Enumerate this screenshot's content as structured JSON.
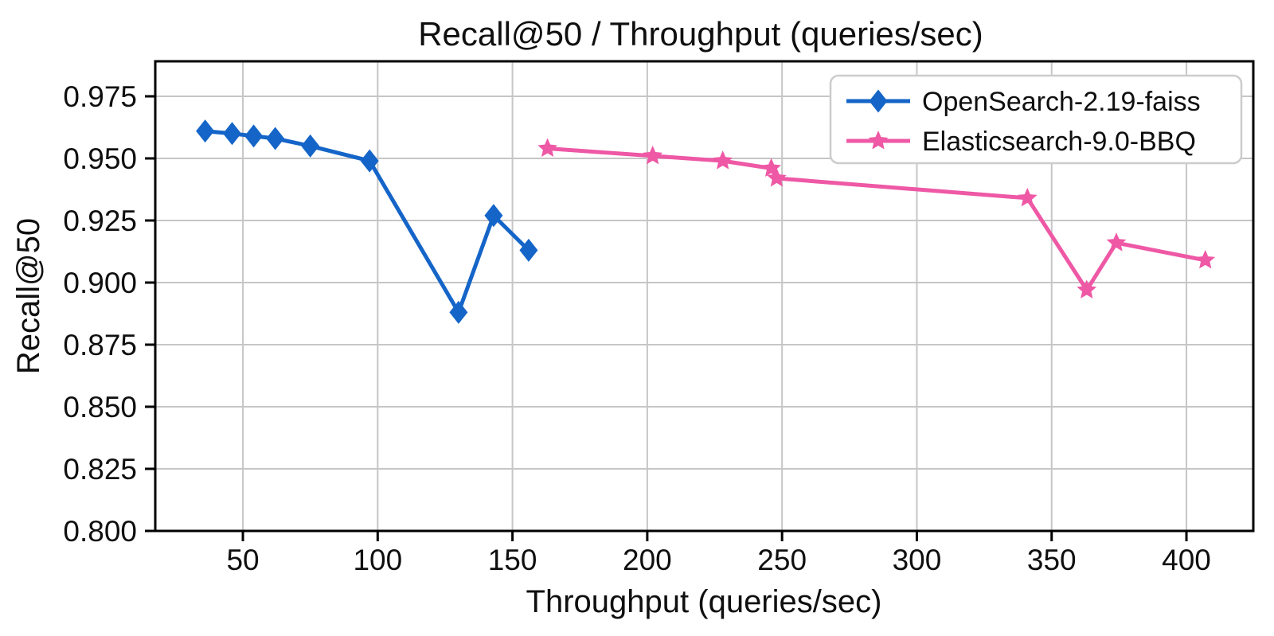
{
  "chart_data": {
    "type": "line",
    "title": "Recall@50 / Throughput (queries/sec)",
    "xlabel": "Throughput (queries/sec)",
    "ylabel": "Recall@50",
    "xlim": [
      17.5,
      424.8
    ],
    "ylim": [
      0.8,
      0.9891
    ],
    "xticks": [
      50,
      100,
      150,
      200,
      250,
      300,
      350,
      400
    ],
    "yticks": [
      0.8,
      0.825,
      0.85,
      0.875,
      0.9,
      0.925,
      0.95,
      0.975
    ],
    "grid": true,
    "legend_position": "upper right",
    "series": [
      {
        "name": "OpenSearch-2.19-faiss",
        "color": "#1565c8",
        "marker": "diamond",
        "x": [
          36,
          46,
          54,
          62,
          75,
          97,
          130,
          143,
          156
        ],
        "y": [
          0.961,
          0.96,
          0.959,
          0.958,
          0.955,
          0.949,
          0.888,
          0.927,
          0.913
        ]
      },
      {
        "name": "Elasticsearch-9.0-BBQ",
        "color": "#ee58a5",
        "marker": "star",
        "x": [
          163,
          202,
          228,
          246,
          248,
          341,
          363,
          374,
          407
        ],
        "y": [
          0.954,
          0.951,
          0.949,
          0.946,
          0.942,
          0.934,
          0.897,
          0.916,
          0.909
        ]
      }
    ]
  },
  "colors": {
    "background": "#ffffff",
    "grid": "#c6c6c6",
    "axis": "#000000",
    "text": "#0f0f0f",
    "legend_border": "#cccccc"
  }
}
